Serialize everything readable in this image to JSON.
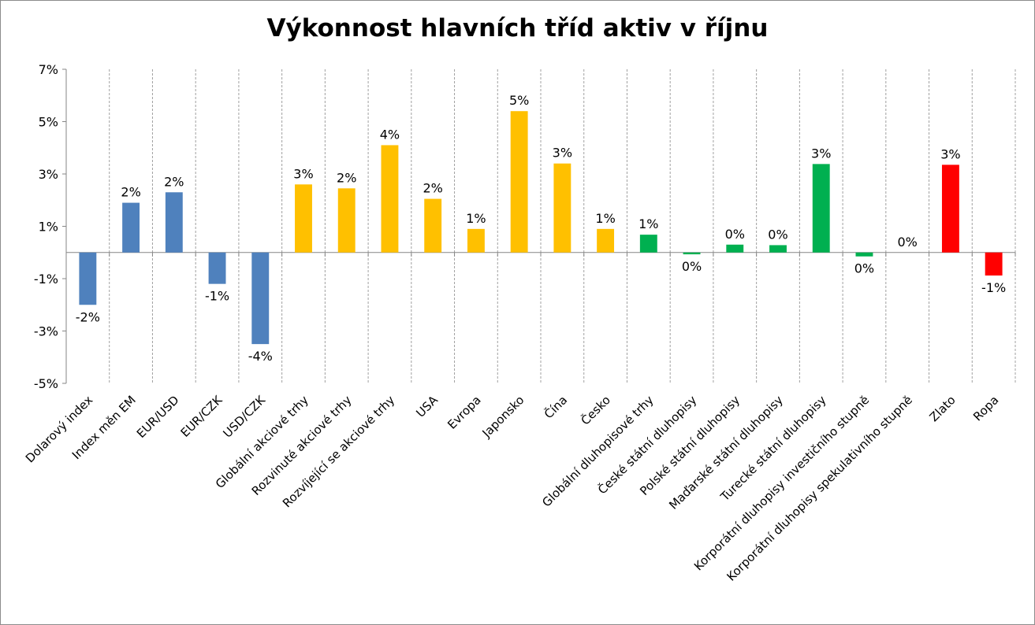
{
  "chart_data": {
    "type": "bar",
    "title": "Výkonnost hlavních tříd aktiv v říjnu",
    "xlabel": "",
    "ylabel": "",
    "ylim": [
      -5,
      7
    ],
    "yticks": [
      7,
      5,
      3,
      1,
      -1,
      -3,
      -5
    ],
    "ytick_labels": [
      "7%",
      "5%",
      "3%",
      "1%",
      "-1%",
      "-3%",
      "-5%"
    ],
    "grid": "vertical-dashed",
    "colors": {
      "fx": "#4f81bd",
      "equity": "#ffc000",
      "bonds": "#00b050",
      "commodities": "#ff0000"
    },
    "bars": [
      {
        "category": "Dolarový index",
        "value": -2.0,
        "label": "-2%",
        "group": "fx"
      },
      {
        "category": "Index měn EM",
        "value": 1.9,
        "label": "2%",
        "group": "fx"
      },
      {
        "category": "EUR/USD",
        "value": 2.3,
        "label": "2%",
        "group": "fx"
      },
      {
        "category": "EUR/CZK",
        "value": -1.2,
        "label": "-1%",
        "group": "fx"
      },
      {
        "category": "USD/CZK",
        "value": -3.5,
        "label": "-4%",
        "group": "fx"
      },
      {
        "category": "Globální akciové trhy",
        "value": 2.6,
        "label": "3%",
        "group": "equity"
      },
      {
        "category": "Rozvinuté akciové trhy",
        "value": 2.45,
        "label": "2%",
        "group": "equity"
      },
      {
        "category": "Rozvíjející se akciové trhy",
        "value": 4.1,
        "label": "4%",
        "group": "equity"
      },
      {
        "category": "USA",
        "value": 2.05,
        "label": "2%",
        "group": "equity"
      },
      {
        "category": "Evropa",
        "value": 0.9,
        "label": "1%",
        "group": "equity"
      },
      {
        "category": "Japonsko",
        "value": 5.4,
        "label": "5%",
        "group": "equity"
      },
      {
        "category": "Čína",
        "value": 3.4,
        "label": "3%",
        "group": "equity"
      },
      {
        "category": "Česko",
        "value": 0.9,
        "label": "1%",
        "group": "equity"
      },
      {
        "category": "Globální dluhopisové trhy",
        "value": 0.68,
        "label": "1%",
        "group": "bonds"
      },
      {
        "category": "České státní dluhopisy",
        "value": -0.07,
        "label": "0%",
        "group": "bonds"
      },
      {
        "category": "Polské státní dluhopisy",
        "value": 0.3,
        "label": "0%",
        "group": "bonds"
      },
      {
        "category": "Maďarské státní dluhopisy",
        "value": 0.28,
        "label": "0%",
        "group": "bonds"
      },
      {
        "category": "Turecké státní dluhopisy",
        "value": 3.38,
        "label": "3%",
        "group": "bonds"
      },
      {
        "category": "Korporátní dluhopisy investičního stupně",
        "value": -0.15,
        "label": "0%",
        "group": "bonds"
      },
      {
        "category": "Korporátní dluhopisy spekulativního stupně",
        "value": 0.0,
        "label": "0%",
        "group": "bonds"
      },
      {
        "category": "Zlato",
        "value": 3.35,
        "label": "3%",
        "group": "commodities"
      },
      {
        "category": "Ropa",
        "value": -0.88,
        "label": "-1%",
        "group": "commodities"
      }
    ]
  }
}
